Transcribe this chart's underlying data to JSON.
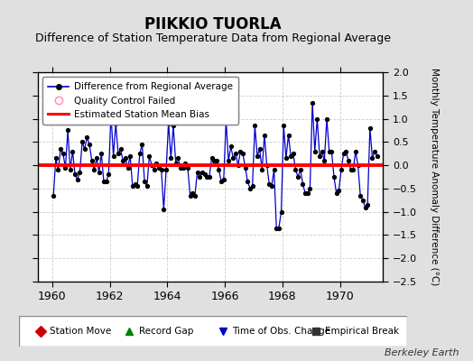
{
  "title": "PIIKKIO TUORLA",
  "subtitle": "Difference of Station Temperature Data from Regional Average",
  "ylabel": "Monthly Temperature Anomaly Difference (°C)",
  "xlim": [
    1959.5,
    1971.5
  ],
  "ylim": [
    -2.5,
    2.0
  ],
  "yticks": [
    -2.5,
    -2.0,
    -1.5,
    -1.0,
    -0.5,
    0.0,
    0.5,
    1.0,
    1.5,
    2.0
  ],
  "xticks": [
    1960,
    1962,
    1964,
    1966,
    1968,
    1970
  ],
  "bias_value": 0.0,
  "fig_bg_color": "#e0e0e0",
  "plot_bg_color": "#ffffff",
  "line_color": "#0000cc",
  "bias_color": "#ff0000",
  "marker_color": "#000000",
  "grid_color": "#cccccc",
  "title_fontsize": 12,
  "subtitle_fontsize": 9,
  "credit": "Berkeley Earth",
  "legend1_labels": [
    "Difference from Regional Average",
    "Quality Control Failed",
    "Estimated Station Mean Bias"
  ],
  "legend2_items": [
    {
      "label": "Station Move",
      "color": "#cc0000",
      "marker": "D"
    },
    {
      "label": "Record Gap",
      "color": "#008000",
      "marker": "^"
    },
    {
      "label": "Time of Obs. Change",
      "color": "#0000cc",
      "marker": "v"
    },
    {
      "label": "Empirical Break",
      "color": "#333333",
      "marker": "s"
    }
  ],
  "data_x": [
    1960.042,
    1960.125,
    1960.208,
    1960.292,
    1960.375,
    1960.458,
    1960.542,
    1960.625,
    1960.708,
    1960.792,
    1960.875,
    1960.958,
    1961.042,
    1961.125,
    1961.208,
    1961.292,
    1961.375,
    1961.458,
    1961.542,
    1961.625,
    1961.708,
    1961.792,
    1961.875,
    1961.958,
    1962.042,
    1962.125,
    1962.208,
    1962.292,
    1962.375,
    1962.458,
    1962.542,
    1962.625,
    1962.708,
    1962.792,
    1962.875,
    1962.958,
    1963.042,
    1963.125,
    1963.208,
    1963.292,
    1963.375,
    1963.458,
    1963.542,
    1963.625,
    1963.708,
    1963.792,
    1963.875,
    1963.958,
    1964.042,
    1964.125,
    1964.208,
    1964.292,
    1964.375,
    1964.458,
    1964.542,
    1964.625,
    1964.708,
    1964.792,
    1964.875,
    1964.958,
    1965.042,
    1965.125,
    1965.208,
    1965.292,
    1965.375,
    1965.458,
    1965.542,
    1965.625,
    1965.708,
    1965.792,
    1965.875,
    1965.958,
    1966.042,
    1966.125,
    1966.208,
    1966.292,
    1966.375,
    1966.458,
    1966.542,
    1966.625,
    1966.708,
    1966.792,
    1966.875,
    1966.958,
    1967.042,
    1967.125,
    1967.208,
    1967.292,
    1967.375,
    1967.458,
    1967.542,
    1967.625,
    1967.708,
    1967.792,
    1967.875,
    1967.958,
    1968.042,
    1968.125,
    1968.208,
    1968.292,
    1968.375,
    1968.458,
    1968.542,
    1968.625,
    1968.708,
    1968.792,
    1968.875,
    1968.958,
    1969.042,
    1969.125,
    1969.208,
    1969.292,
    1969.375,
    1969.458,
    1969.542,
    1969.625,
    1969.708,
    1969.792,
    1969.875,
    1969.958,
    1970.042,
    1970.125,
    1970.208,
    1970.292,
    1970.375,
    1970.458,
    1970.542,
    1970.625,
    1970.708,
    1970.792,
    1970.875,
    1970.958,
    1971.042,
    1971.125,
    1971.208,
    1971.292
  ],
  "data_y": [
    -0.65,
    0.15,
    -0.1,
    0.35,
    0.25,
    -0.05,
    0.75,
    -0.1,
    0.3,
    -0.2,
    -0.3,
    -0.15,
    0.5,
    0.35,
    0.6,
    0.45,
    0.1,
    -0.1,
    0.15,
    -0.15,
    0.25,
    -0.35,
    -0.35,
    -0.2,
    1.1,
    0.2,
    0.9,
    0.25,
    0.35,
    0.1,
    0.15,
    -0.05,
    0.2,
    -0.45,
    -0.4,
    -0.45,
    0.25,
    0.45,
    -0.35,
    -0.45,
    0.2,
    0.0,
    -0.1,
    0.05,
    -0.05,
    -0.1,
    -0.95,
    -0.1,
    0.9,
    0.15,
    0.85,
    0.05,
    0.15,
    -0.05,
    -0.05,
    0.05,
    -0.05,
    -0.65,
    -0.6,
    -0.65,
    -0.15,
    -0.25,
    -0.15,
    -0.2,
    -0.25,
    -0.25,
    0.15,
    0.1,
    0.1,
    -0.1,
    -0.35,
    -0.3,
    0.95,
    0.1,
    0.4,
    0.15,
    0.25,
    0.0,
    0.3,
    0.25,
    -0.05,
    -0.35,
    -0.5,
    -0.45,
    0.85,
    0.2,
    0.35,
    -0.1,
    0.65,
    0.0,
    -0.4,
    -0.45,
    -0.1,
    -1.35,
    -1.35,
    -1.0,
    0.85,
    0.15,
    0.65,
    0.2,
    0.25,
    -0.1,
    -0.25,
    -0.1,
    -0.4,
    -0.6,
    -0.6,
    -0.5,
    1.35,
    0.3,
    1.0,
    0.2,
    0.3,
    0.1,
    1.0,
    0.3,
    0.3,
    -0.25,
    -0.6,
    -0.55,
    -0.1,
    0.25,
    0.3,
    0.1,
    -0.1,
    -0.1,
    0.3,
    0.0,
    -0.65,
    -0.75,
    -0.9,
    -0.85,
    0.8,
    0.15,
    0.3,
    0.2
  ]
}
